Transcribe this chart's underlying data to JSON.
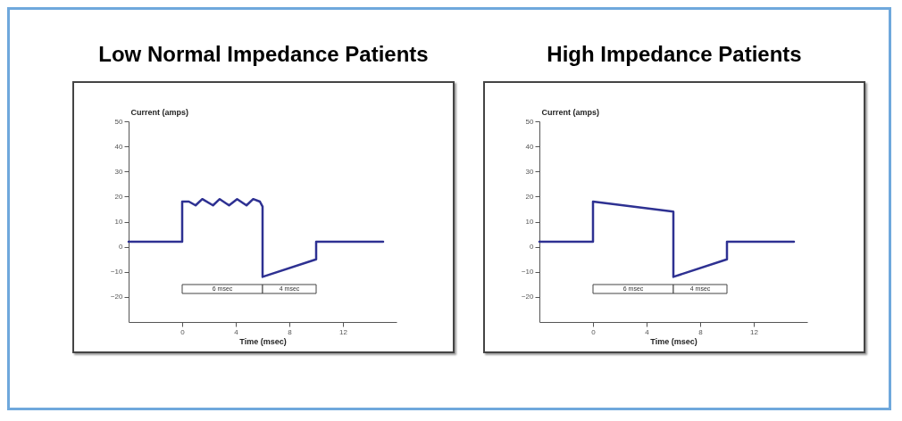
{
  "chart_data": [
    {
      "type": "line",
      "title": "Low Normal Impedance Patients",
      "xlabel": "Time (msec)",
      "ylabel": "Current (amps)",
      "xlim": [
        -4,
        16
      ],
      "xticks": [
        0,
        4,
        8,
        12
      ],
      "ylim": [
        -30,
        50
      ],
      "yticks": [
        50,
        40,
        30,
        20,
        10,
        0,
        -10,
        -20
      ],
      "grid": false,
      "marker": "none",
      "series": [
        {
          "color": "#2e3192",
          "x": [
            -4,
            0,
            0,
            0.5,
            1,
            1.5,
            2.3,
            2.8,
            3.5,
            4.1,
            4.8,
            5.3,
            5.8,
            6,
            6,
            10,
            10,
            15
          ],
          "values": [
            2,
            2,
            18,
            18,
            16.5,
            19,
            16.5,
            19,
            16.5,
            19,
            16.5,
            19,
            18,
            16,
            -12,
            -5,
            2,
            2
          ]
        }
      ],
      "bands": [
        {
          "axis": "x",
          "from": 0,
          "to": 6,
          "label": "6 msec"
        },
        {
          "axis": "x",
          "from": 6,
          "to": 10,
          "label": "4 msec"
        }
      ]
    },
    {
      "type": "line",
      "title": "High Impedance Patients",
      "xlabel": "Time (msec)",
      "ylabel": "Current (amps)",
      "xlim": [
        -4,
        16
      ],
      "xticks": [
        0,
        4,
        8,
        12
      ],
      "ylim": [
        -30,
        50
      ],
      "yticks": [
        50,
        40,
        30,
        20,
        10,
        0,
        -10,
        -20
      ],
      "grid": false,
      "marker": "none",
      "series": [
        {
          "color": "#2e3192",
          "x": [
            -4,
            0,
            0,
            6,
            6,
            10,
            10,
            15
          ],
          "values": [
            2,
            2,
            18,
            14,
            -12,
            -5,
            2,
            2
          ]
        }
      ],
      "bands": [
        {
          "axis": "x",
          "from": 0,
          "to": 6,
          "label": "6 msec"
        },
        {
          "axis": "x",
          "from": 6,
          "to": 10,
          "label": "4 msec"
        }
      ]
    }
  ]
}
